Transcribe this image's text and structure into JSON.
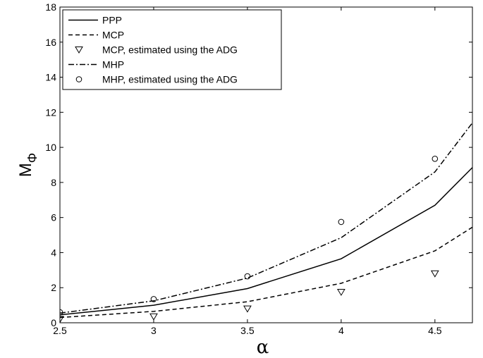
{
  "chart_data": {
    "type": "line",
    "title": "",
    "xlabel": "α",
    "ylabel_main": "M",
    "ylabel_sub": "Φ",
    "xlim": [
      2.5,
      4.7
    ],
    "ylim": [
      0,
      18
    ],
    "xticks": [
      2.5,
      3,
      3.5,
      4,
      4.5
    ],
    "xtick_labels": [
      "2.5",
      "3",
      "3.5",
      "4",
      "4.5"
    ],
    "yticks": [
      0,
      2,
      4,
      6,
      8,
      10,
      12,
      14,
      16,
      18
    ],
    "ytick_labels": [
      "0",
      "2",
      "4",
      "6",
      "8",
      "10",
      "12",
      "14",
      "16",
      "18"
    ],
    "grid": false,
    "legend_position": "top-left",
    "series": [
      {
        "name": "PPP",
        "style": "solid",
        "x": [
          2.5,
          3.0,
          3.5,
          4.0,
          4.5,
          4.7
        ],
        "y": [
          0.45,
          1.0,
          1.95,
          3.65,
          6.7,
          8.85
        ]
      },
      {
        "name": "MCP",
        "style": "dashed",
        "x": [
          2.5,
          3.0,
          3.5,
          4.0,
          4.5,
          4.7
        ],
        "y": [
          0.3,
          0.65,
          1.2,
          2.25,
          4.1,
          5.45
        ]
      },
      {
        "name": "MCP, estimated using the ADG",
        "style": "marker-triangle-down",
        "x": [
          2.5,
          3.0,
          3.5,
          4.0,
          4.5
        ],
        "y": [
          0.2,
          0.35,
          0.8,
          1.75,
          2.8
        ]
      },
      {
        "name": "MHP",
        "style": "dashdot",
        "x": [
          2.5,
          3.0,
          3.5,
          4.0,
          4.5,
          4.7
        ],
        "y": [
          0.55,
          1.25,
          2.55,
          4.85,
          8.6,
          11.4
        ]
      },
      {
        "name": "MHP, estimated using the ADG",
        "style": "marker-circle",
        "x": [
          2.5,
          3.0,
          3.5,
          4.0,
          4.5
        ],
        "y": [
          0.6,
          1.35,
          2.65,
          5.75,
          9.35
        ]
      }
    ]
  }
}
